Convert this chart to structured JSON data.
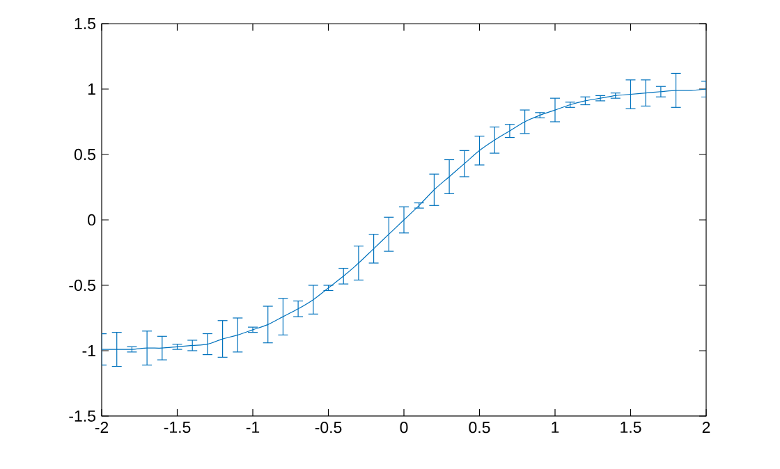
{
  "chart_data": {
    "type": "line",
    "x": [
      -2,
      -1.9,
      -1.8,
      -1.7,
      -1.6,
      -1.5,
      -1.4,
      -1.3,
      -1.2,
      -1.1,
      -1.0,
      -0.9,
      -0.8,
      -0.7,
      -0.6,
      -0.5,
      -0.4,
      -0.3,
      -0.2,
      -0.1,
      0,
      0.1,
      0.2,
      0.3,
      0.4,
      0.5,
      0.6,
      0.7,
      0.8,
      0.9,
      1.0,
      1.1,
      1.2,
      1.3,
      1.4,
      1.5,
      1.6,
      1.7,
      1.8,
      1.9,
      2.0
    ],
    "series": [
      {
        "color": "#0072bd",
        "values": [
          -0.99,
          -0.99,
          -0.99,
          -0.98,
          -0.98,
          -0.97,
          -0.96,
          -0.95,
          -0.91,
          -0.88,
          -0.84,
          -0.8,
          -0.74,
          -0.68,
          -0.61,
          -0.52,
          -0.43,
          -0.33,
          -0.22,
          -0.11,
          0.0,
          0.11,
          0.23,
          0.33,
          0.43,
          0.53,
          0.61,
          0.68,
          0.75,
          0.8,
          0.84,
          0.88,
          0.91,
          0.93,
          0.95,
          0.96,
          0.97,
          0.98,
          0.99,
          0.99,
          1.0
        ],
        "errors": [
          0.12,
          0.13,
          0.02,
          0.13,
          0.09,
          0.02,
          0.04,
          0.08,
          0.14,
          0.13,
          0.02,
          0.14,
          0.14,
          0.06,
          0.11,
          0.02,
          0.06,
          0.13,
          0.11,
          0.13,
          0.1,
          0.02,
          0.12,
          0.13,
          0.1,
          0.11,
          0.1,
          0.05,
          0.09,
          0.02,
          0.09,
          0.02,
          0.03,
          0.02,
          0.02,
          0.11,
          0.1,
          0.04,
          0.13,
          null,
          0.06
        ]
      }
    ],
    "xlim": [
      -2,
      2
    ],
    "ylim": [
      -1.5,
      1.5
    ],
    "xticks": [
      -2,
      -1.5,
      -1,
      -0.5,
      0,
      0.5,
      1,
      1.5,
      2
    ],
    "yticks": [
      -1.5,
      -1,
      -0.5,
      0,
      0.5,
      1,
      1.5
    ],
    "grid": false,
    "marker": "none",
    "line_style": "solid"
  }
}
